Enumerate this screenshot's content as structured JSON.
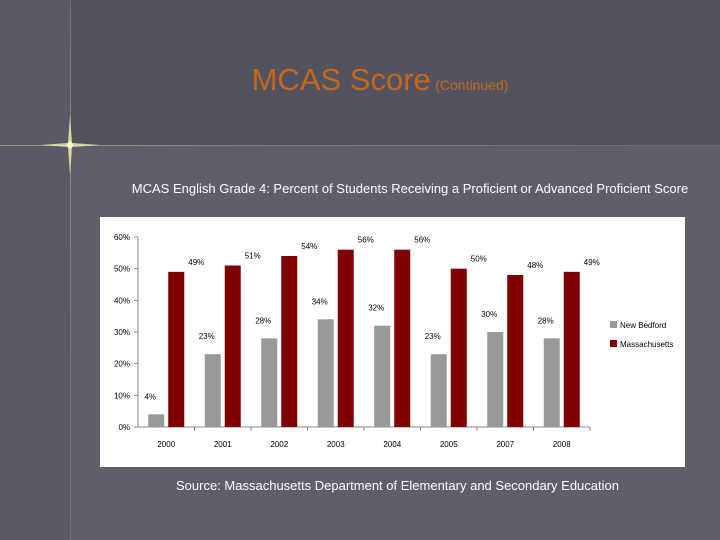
{
  "slide": {
    "title_main": "MCAS Score",
    "title_sub": "(Continued)",
    "source": "Source:  Massachusetts Department of Elementary and Secondary Education"
  },
  "chart_data": {
    "type": "bar",
    "title": "MCAS English Grade 4: Percent of Students Receiving a Proficient or Advanced Proficient Score",
    "categories": [
      "2000",
      "2001",
      "2002",
      "2003",
      "2004",
      "2005",
      "2007",
      "2008"
    ],
    "series": [
      {
        "name": "New Bedford",
        "color": "#999999",
        "values": [
          4,
          23,
          28,
          34,
          32,
          23,
          30,
          28
        ],
        "labels": [
          "4%",
          "23%",
          "28%",
          "34%",
          "32%",
          "23%",
          "30%",
          "28%"
        ]
      },
      {
        "name": "Massachusetts",
        "color": "#800000",
        "values": [
          49,
          51,
          54,
          56,
          56,
          50,
          48,
          49
        ],
        "labels": [
          "49%",
          "51%",
          "54%",
          "56%",
          "56%",
          "50%",
          "48%",
          "49%"
        ]
      }
    ],
    "y_ticks": [
      0,
      10,
      20,
      30,
      40,
      50,
      60
    ],
    "y_tick_labels": [
      "0%",
      "10%",
      "20%",
      "30%",
      "40%",
      "50%",
      "60%"
    ],
    "ylim": [
      0,
      60
    ],
    "legend_position": "right"
  }
}
